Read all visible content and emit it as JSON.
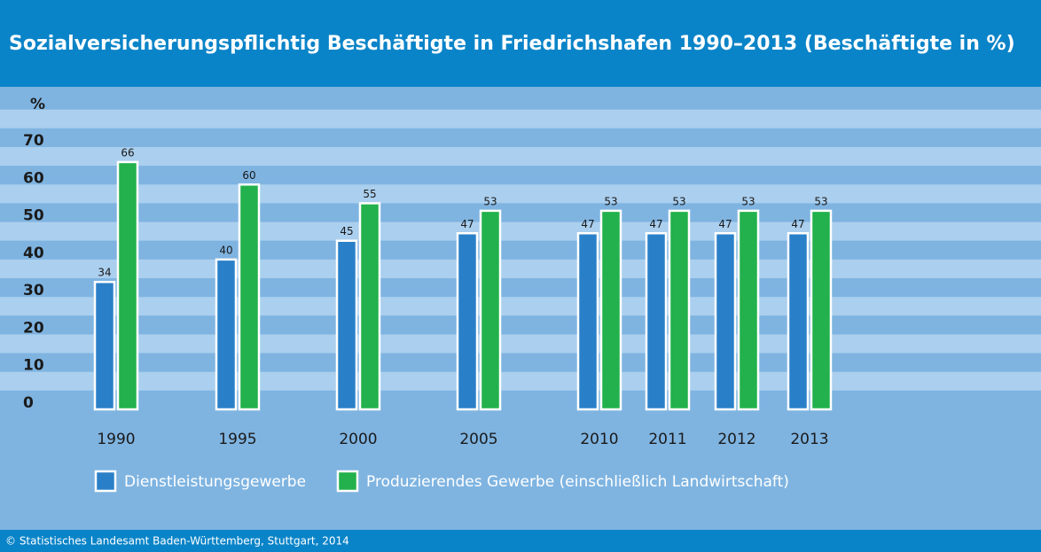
{
  "chart_data": {
    "type": "bar",
    "title": "Sozialversicherungspflichtig Beschäftigte in Friedrichshafen 1990–2013 (Beschäftigte in %)",
    "y_label": "%",
    "source": "© Statistisches Landesamt Baden-Württemberg, Stuttgart, 2014",
    "categories": [
      "1990",
      "1995",
      "2000",
      "2005",
      "2010",
      "2011",
      "2012",
      "2013"
    ],
    "series": [
      {
        "name": "Dienstleistungsgewerbe",
        "color": "#2a80c8",
        "values": [
          34,
          40,
          45,
          47,
          47,
          47,
          47,
          47
        ]
      },
      {
        "name": "Produzierendes Gewerbe (einschließlich Landwirtschaft)",
        "color": "#22b14c",
        "values": [
          66,
          60,
          55,
          53,
          53,
          53,
          53,
          53
        ]
      }
    ],
    "ylim": [
      0,
      70
    ],
    "yticks": [
      0,
      10,
      20,
      30,
      40,
      50,
      60,
      70
    ]
  }
}
